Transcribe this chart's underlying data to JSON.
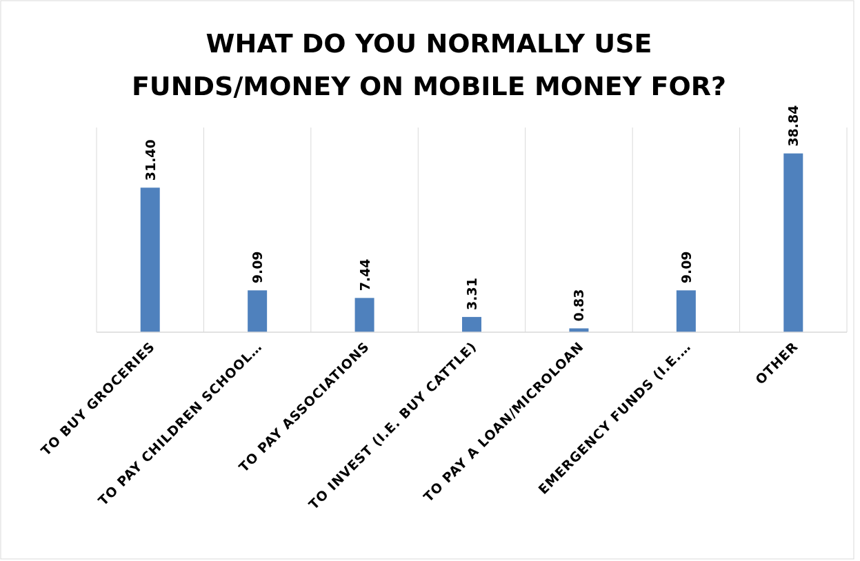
{
  "chart_data": {
    "type": "bar",
    "title": "WHAT DO YOU NORMALLY USE FUNDS/MONEY ON MOBILE MONEY FOR?",
    "categories": [
      "TO BUY GROCERIES",
      "TO PAY CHILDREN SCHOOL…",
      "TO PAY ASSOCIATIONS",
      "TO INVEST (I.E. BUY CATTLE)",
      "TO PAY A LOAN/MICROLOAN",
      "EMERGENCY FUNDS (I.E.…",
      "OTHER"
    ],
    "values": [
      31.4,
      9.09,
      7.44,
      3.31,
      0.83,
      9.09,
      38.84
    ],
    "value_labels": [
      "31.40",
      "9.09",
      "7.44",
      "3.31",
      "0.83",
      "9.09",
      "38.84"
    ],
    "color": "#4f81bd",
    "grid": "x"
  }
}
